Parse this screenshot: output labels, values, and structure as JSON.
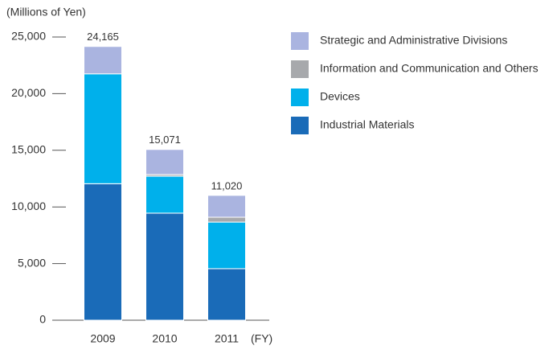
{
  "chart_data": {
    "type": "stacked_bar",
    "y_label": "(Millions of Yen)",
    "x_unit": "(FY)",
    "categories": [
      "2009",
      "2010",
      "2011"
    ],
    "series": [
      {
        "name": "Industrial Materials",
        "color": "#1a6bb8",
        "values": [
          12050,
          9450,
          4550
        ]
      },
      {
        "name": "Devices",
        "color": "#00b0eb",
        "values": [
          9700,
          3260,
          4110
        ]
      },
      {
        "name": "Information and Communication and Others",
        "color": "#a7a9ac",
        "values": [
          0,
          150,
          430
        ]
      },
      {
        "name": "Strategic and Administrative Divisions",
        "color": "#aab4e0",
        "values": [
          2415,
          2211,
          1930
        ]
      }
    ],
    "totals": {
      "values": [
        24165,
        15071,
        11020
      ],
      "value_labels": [
        "24,165",
        "15,071",
        "11,020"
      ]
    },
    "ylim": [
      0,
      25000
    ],
    "yticks": [
      0,
      {
        "value": 5000,
        "label": "5,000"
      },
      {
        "value": 10000,
        "label": "10,000"
      },
      {
        "value": 15000,
        "label": "15,000"
      },
      {
        "value": 20000,
        "label": "20,000"
      },
      {
        "value": 25000,
        "label": "25,000"
      }
    ]
  }
}
